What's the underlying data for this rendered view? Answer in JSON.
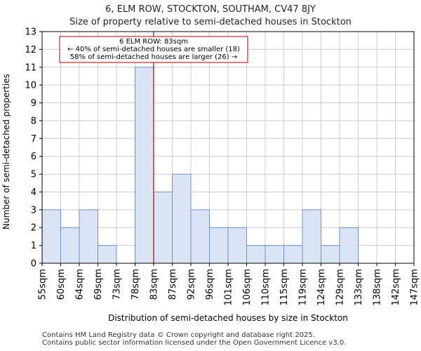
{
  "title_line1": "6, ELM ROW, STOCKTON, SOUTHAM, CV47 8JY",
  "title_line2": "Size of property relative to semi-detached houses in Stockton",
  "footer_line1": "Contains HM Land Registry data © Crown copyright and database right 2025.",
  "footer_line2": "Contains public sector information licensed under the Open Government Licence v3.0.",
  "colors": {
    "bar_fill": "#dae4f4",
    "bar_stroke": "#6f90c9",
    "marker": "#aa0000",
    "grid": "#cccccc"
  },
  "chart_data": {
    "type": "bar",
    "title": "6, ELM ROW, STOCKTON, SOUTHAM, CV47 8JY",
    "subtitle": "Size of property relative to semi-detached houses in Stockton",
    "xlabel": "Distribution of semi-detached houses by size in Stockton",
    "ylabel": "Number of semi-detached properties",
    "bin_edges": [
      55,
      60,
      64,
      69,
      73,
      78,
      83,
      87,
      92,
      96,
      101,
      106,
      110,
      115,
      119,
      124,
      129,
      133,
      138,
      142,
      147
    ],
    "tick_labels": [
      "55sqm",
      "60sqm",
      "64sqm",
      "69sqm",
      "73sqm",
      "78sqm",
      "83sqm",
      "87sqm",
      "92sqm",
      "96sqm",
      "101sqm",
      "106sqm",
      "110sqm",
      "115sqm",
      "119sqm",
      "124sqm",
      "129sqm",
      "133sqm",
      "138sqm",
      "142sqm",
      "147sqm"
    ],
    "values": [
      3,
      2,
      3,
      1,
      0,
      11,
      4,
      5,
      3,
      2,
      2,
      1,
      1,
      1,
      3,
      1,
      2,
      0,
      0,
      0
    ],
    "ylim": [
      0,
      13
    ],
    "yticks": [
      0,
      1,
      2,
      3,
      4,
      5,
      6,
      7,
      8,
      9,
      10,
      11,
      12,
      13
    ],
    "grid": true,
    "property_marker": {
      "value": 83,
      "units": "sqm"
    },
    "annotation": {
      "line1": "6 ELM ROW: 83sqm",
      "line2": "← 40% of semi-detached houses are smaller (18)",
      "line3": "58% of semi-detached houses are larger (26) →"
    }
  }
}
